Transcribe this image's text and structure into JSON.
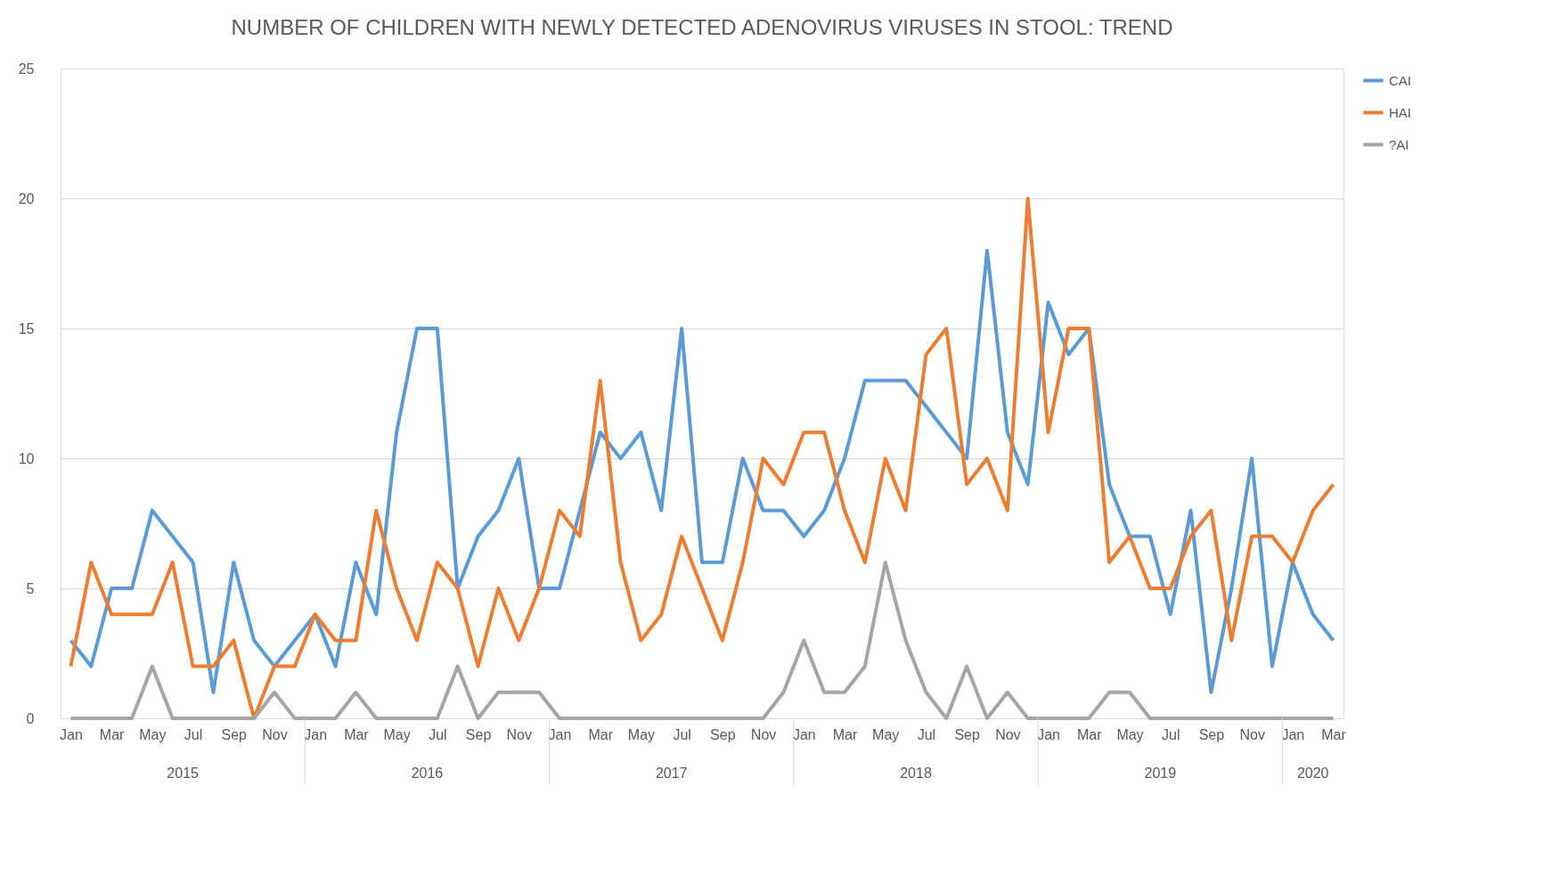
{
  "chart_data": {
    "type": "line",
    "title": "NUMBER OF CHILDREN WITH NEWLY DETECTED ADENOVIRUS VIRUSES IN STOOL: TREND",
    "categories": [
      "Jan",
      null,
      "Mar",
      null,
      "May",
      null,
      "Jul",
      null,
      "Sep",
      null,
      "Nov",
      null,
      "Jan",
      null,
      "Mar",
      null,
      "May",
      null,
      "Jul",
      null,
      "Sep",
      null,
      "Nov",
      null,
      "Jan",
      null,
      "Mar",
      null,
      "May",
      null,
      "Jul",
      null,
      "Sep",
      null,
      "Nov",
      null,
      "Jan",
      null,
      "Mar",
      null,
      "May",
      null,
      "Jul",
      null,
      "Sep",
      null,
      "Nov",
      null,
      "Jan",
      null,
      "Mar",
      null,
      "May",
      null,
      "Jul",
      null,
      "Sep",
      null,
      "Nov",
      null,
      "Jan",
      null,
      "Mar"
    ],
    "series": [
      {
        "name": "CAI",
        "color": "#5b9bd5",
        "values": [
          3,
          2,
          5,
          5,
          8,
          7,
          6,
          1,
          6,
          3,
          2,
          3,
          4,
          2,
          6,
          4,
          11,
          15,
          15,
          5,
          7,
          8,
          10,
          5,
          5,
          8,
          11,
          10,
          11,
          8,
          15,
          6,
          6,
          10,
          8,
          8,
          7,
          8,
          10,
          13,
          13,
          13,
          12,
          11,
          10,
          18,
          11,
          9,
          16,
          14,
          15,
          9,
          7,
          7,
          4,
          8,
          1,
          5,
          10,
          2,
          6,
          4,
          3
        ]
      },
      {
        "name": "HAI",
        "color": "#ed7d31",
        "values": [
          2,
          6,
          4,
          4,
          4,
          6,
          2,
          2,
          3,
          0,
          2,
          2,
          4,
          3,
          3,
          8,
          5,
          3,
          6,
          5,
          2,
          5,
          3,
          5,
          8,
          7,
          13,
          6,
          3,
          4,
          7,
          5,
          3,
          6,
          10,
          9,
          11,
          11,
          8,
          6,
          10,
          8,
          14,
          15,
          9,
          10,
          8,
          20,
          11,
          15,
          15,
          6,
          7,
          5,
          5,
          7,
          8,
          3,
          7,
          7,
          6,
          8,
          9
        ]
      },
      {
        "name": "?AI",
        "color": "#a5a5a5",
        "values": [
          0,
          0,
          0,
          0,
          2,
          0,
          0,
          0,
          0,
          0,
          1,
          0,
          0,
          0,
          1,
          0,
          0,
          0,
          0,
          2,
          0,
          1,
          1,
          1,
          0,
          0,
          0,
          0,
          0,
          0,
          0,
          0,
          0,
          0,
          0,
          1,
          3,
          1,
          1,
          2,
          6,
          3,
          1,
          0,
          2,
          0,
          1,
          0,
          0,
          0,
          0,
          1,
          1,
          0,
          0,
          0,
          0,
          0,
          0,
          0,
          0,
          0,
          0
        ]
      }
    ],
    "annotations": [
      "2015",
      "2016",
      "2017",
      "2018",
      "2019",
      "2020"
    ],
    "ylim": [
      0,
      25
    ],
    "yticks": [
      0,
      5,
      10,
      15,
      20,
      25
    ],
    "grid": "y",
    "legend": "right",
    "marker": "none",
    "line_style": "solid"
  }
}
